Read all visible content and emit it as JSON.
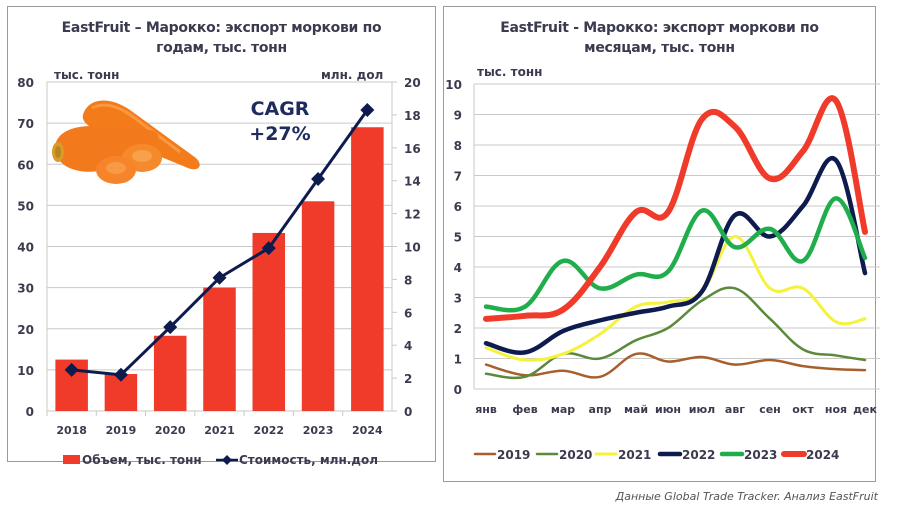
{
  "source_note": "Данные Global Trade Tracker. Анализ EastFruit",
  "colors": {
    "bar": "#f03b2a",
    "value_line": "#0d1b4f",
    "grid": "#c9c9c9",
    "text": "#3b3b4f"
  },
  "chart_data": [
    {
      "type": "bar",
      "title_line1": "EastFruit – Марокко: экспорт моркови по",
      "title_line2": "годам, тыс. тонн",
      "left_unit": "тыс. тонн",
      "right_unit": "млн. дол",
      "annotation_line1": "CAGR",
      "annotation_line2": "+27%",
      "categories": [
        "2018",
        "2019",
        "2020",
        "2021",
        "2022",
        "2023",
        "2024"
      ],
      "series": [
        {
          "name": "Объем, тыс. тонн",
          "type": "bar",
          "axis": "left",
          "color": "#f03b2a",
          "values": [
            12.5,
            9,
            18.3,
            30,
            43.3,
            51,
            69
          ]
        },
        {
          "name": "Стоимость, млн.дол",
          "type": "line",
          "axis": "right",
          "color": "#0d1b4f",
          "marker": "diamond",
          "values": [
            2.5,
            2.2,
            5.1,
            8.1,
            9.9,
            14.1,
            18.3
          ]
        }
      ],
      "ylim_left": [
        0,
        80
      ],
      "yticks_left": [
        "0",
        "10",
        "20",
        "30",
        "40",
        "50",
        "60",
        "70",
        "80"
      ],
      "ylim_right": [
        0,
        20
      ],
      "yticks_right": [
        "0",
        "2",
        "4",
        "6",
        "8",
        "10",
        "12",
        "14",
        "16",
        "18",
        "20"
      ],
      "grid": true,
      "legend_position": "bottom",
      "image": "carrot-illustration"
    },
    {
      "type": "line",
      "title_line1": "EastFruit - Марокко: экспорт моркови по",
      "title_line2": "месяцам, тыс. тонн",
      "unit": "тыс. тонн",
      "categories": [
        "янв",
        "фев",
        "мар",
        "апр",
        "май",
        "июн",
        "июл",
        "авг",
        "сен",
        "окт",
        "ноя",
        "дек"
      ],
      "series": [
        {
          "name": "2019",
          "color": "#a85f2e",
          "values": [
            0.8,
            0.45,
            0.6,
            0.4,
            1.15,
            0.9,
            1.05,
            0.8,
            0.95,
            0.75,
            0.65,
            0.62
          ]
        },
        {
          "name": "2020",
          "color": "#5b8a3a",
          "values": [
            0.5,
            0.4,
            1.15,
            1.0,
            1.6,
            2.0,
            2.9,
            3.3,
            2.3,
            1.3,
            1.1,
            0.95
          ]
        },
        {
          "name": "2021",
          "color": "#f5f23c",
          "values": [
            1.35,
            0.95,
            1.15,
            1.8,
            2.7,
            2.85,
            3.2,
            5.0,
            3.3,
            3.3,
            2.2,
            2.3
          ]
        },
        {
          "name": "2022",
          "color": "#0d1b4f",
          "values": [
            1.5,
            1.2,
            1.9,
            2.25,
            2.5,
            2.7,
            3.2,
            5.7,
            5.0,
            6.0,
            7.5,
            3.8
          ]
        },
        {
          "name": "2023",
          "color": "#1fae4b",
          "values": [
            2.7,
            2.7,
            4.2,
            3.3,
            3.75,
            3.85,
            5.85,
            4.65,
            5.25,
            4.2,
            6.25,
            4.3
          ]
        },
        {
          "name": "2024",
          "color": "#f03b2a",
          "values": [
            2.3,
            2.4,
            2.6,
            4.0,
            5.8,
            5.8,
            8.85,
            8.6,
            6.9,
            7.8,
            9.45,
            5.15
          ]
        }
      ],
      "ylim": [
        0,
        10
      ],
      "yticks": [
        "0",
        "1",
        "2",
        "3",
        "4",
        "5",
        "6",
        "7",
        "8",
        "9",
        "10"
      ],
      "grid": true,
      "legend_position": "bottom"
    }
  ]
}
